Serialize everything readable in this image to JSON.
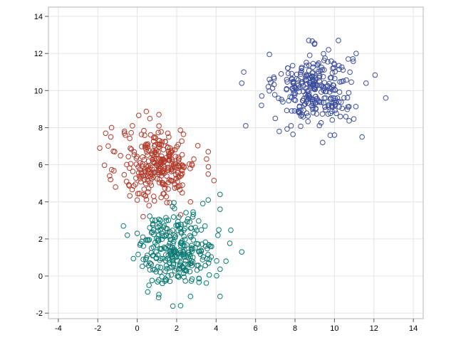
{
  "chart_data": {
    "type": "scatter",
    "title": "",
    "xlabel": "",
    "ylabel": "",
    "xlim": [
      -4.5,
      14.5
    ],
    "ylim": [
      -2.3,
      14.5
    ],
    "x_ticks": [
      -4,
      -2,
      0,
      2,
      4,
      6,
      8,
      10,
      12,
      14
    ],
    "y_ticks": [
      -2,
      0,
      2,
      4,
      6,
      8,
      10,
      12,
      14
    ],
    "grid": true,
    "legend": "none",
    "series": [
      {
        "color": "#3e4f9e",
        "center": [
          9.0,
          10.1
        ],
        "count": 300,
        "points": [
          [
            8.7,
            12.7
          ],
          [
            10.2,
            12.7
          ],
          [
            9.7,
            12.2
          ],
          [
            11.1,
            12.0
          ],
          [
            10.7,
            11.7
          ],
          [
            10.0,
            11.4
          ],
          [
            5.4,
            11.0
          ],
          [
            5.3,
            10.4
          ],
          [
            6.7,
            10.6
          ],
          [
            7.3,
            10.9
          ],
          [
            11.6,
            10.4
          ],
          [
            12.6,
            9.6
          ],
          [
            6.3,
            9.2
          ],
          [
            7.0,
            8.5
          ],
          [
            5.5,
            8.1
          ],
          [
            7.2,
            7.8
          ],
          [
            7.8,
            8.1
          ],
          [
            9.4,
            7.2
          ],
          [
            10.0,
            7.6
          ],
          [
            11.4,
            7.5
          ],
          [
            10.3,
            8.6
          ],
          [
            8.2,
            8.8
          ],
          [
            8.9,
            9.0
          ]
        ]
      },
      {
        "color": "#b23a2a",
        "center": [
          1.1,
          6.0
        ],
        "count": 300,
        "points": [
          [
            1.1,
            8.7
          ],
          [
            -1.3,
            8.0
          ],
          [
            -1.6,
            7.7
          ],
          [
            -1.9,
            6.9
          ],
          [
            -0.6,
            7.6
          ],
          [
            3.6,
            6.7
          ],
          [
            3.6,
            5.5
          ],
          [
            -1.4,
            5.4
          ],
          [
            -1.1,
            4.8
          ],
          [
            2.7,
            4.0
          ],
          [
            2.2,
            3.3
          ],
          [
            0.6,
            3.8
          ],
          [
            0.0,
            4.1
          ],
          [
            0.3,
            3.2
          ]
        ]
      },
      {
        "color": "#0b7a72",
        "center": [
          2.0,
          1.5
        ],
        "count": 300,
        "points": [
          [
            4.2,
            4.4
          ],
          [
            3.6,
            4.1
          ],
          [
            4.2,
            3.6
          ],
          [
            3.7,
            1.6
          ],
          [
            4.5,
            0.8
          ],
          [
            5.3,
            1.3
          ],
          [
            -0.5,
            2.2
          ],
          [
            -0.7,
            2.7
          ],
          [
            0.0,
            2.3
          ],
          [
            0.6,
            -0.5
          ],
          [
            1.1,
            -1.0
          ],
          [
            2.2,
            -1.6
          ],
          [
            2.7,
            -1.1
          ],
          [
            4.2,
            -1.1
          ]
        ]
      }
    ]
  }
}
